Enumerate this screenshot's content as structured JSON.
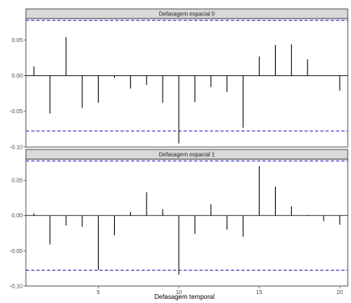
{
  "chart_data": {
    "type": "bar",
    "xlabel": "Defasagem temporal",
    "ylabel": "",
    "xlim": [
      0.5,
      20.5
    ],
    "ylim": [
      -0.1,
      0.08
    ],
    "x_ticks": [
      5,
      10,
      15,
      20
    ],
    "y_ticks": [
      -0.1,
      -0.05,
      0.0,
      0.05
    ],
    "y_tick_labels": [
      "-0.10",
      "-0.05",
      "0.00",
      "0.05"
    ],
    "confidence_bound": 0.0775,
    "colors": {
      "bars": "#000000",
      "zero_line": "#000000",
      "bounds": "#2222cc",
      "strip_fill": "#d9d9d9",
      "strip_border": "#333333",
      "panel_border": "#333333"
    },
    "panels": [
      {
        "title": "Defasagem espacial 0",
        "x": [
          1,
          2,
          3,
          4,
          5,
          6,
          7,
          8,
          9,
          10,
          11,
          12,
          13,
          14,
          15,
          16,
          17,
          18,
          19,
          20
        ],
        "values": [
          0.013,
          -0.053,
          0.054,
          -0.045,
          -0.038,
          -0.003,
          -0.018,
          -0.013,
          -0.038,
          -0.095,
          -0.037,
          -0.016,
          -0.023,
          -0.073,
          0.027,
          0.043,
          0.044,
          0.023,
          0.0,
          -0.021
        ]
      },
      {
        "title": "Defasagem espacial 1",
        "x": [
          1,
          2,
          3,
          4,
          5,
          6,
          7,
          8,
          9,
          10,
          11,
          12,
          13,
          14,
          15,
          16,
          17,
          18,
          19,
          20
        ],
        "values": [
          0.003,
          -0.041,
          -0.014,
          -0.016,
          -0.077,
          -0.028,
          0.005,
          0.033,
          0.009,
          -0.084,
          -0.026,
          0.016,
          -0.02,
          -0.03,
          0.07,
          0.041,
          0.013,
          0.001,
          -0.008,
          -0.013
        ]
      }
    ]
  }
}
